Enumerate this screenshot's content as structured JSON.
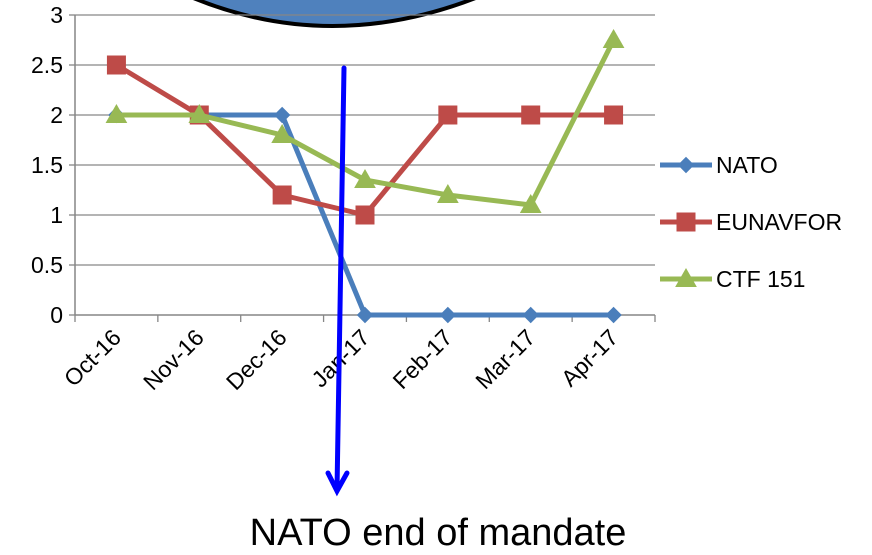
{
  "chart_data": {
    "type": "line",
    "categories": [
      "Oct-16",
      "Nov-16",
      "Dec-16",
      "Jan-17",
      "Feb-17",
      "Mar-17",
      "Apr-17"
    ],
    "ylim": [
      0,
      3
    ],
    "yticks": [
      "0",
      "0.5",
      "1",
      "1.5",
      "2",
      "2.5",
      "3"
    ],
    "grid": "horizontal",
    "legend": "right",
    "series": [
      {
        "name": "NATO",
        "marker": "diamond",
        "color": "#4A7EBB",
        "values": [
          2,
          2,
          2,
          0,
          0,
          0,
          0
        ]
      },
      {
        "name": "EUNAVFOR",
        "marker": "square",
        "color": "#BE4B48",
        "values": [
          2.5,
          2,
          1.2,
          1,
          2,
          2,
          2
        ]
      },
      {
        "name": "CTF 151",
        "marker": "triangle",
        "color": "#98B954",
        "values": [
          2,
          2,
          1.8,
          1.35,
          1.2,
          1.1,
          2.75
        ]
      }
    ],
    "annotation": {
      "text": "NATO end of mandate",
      "arrow_color": "#0000FF"
    },
    "banner_color": "#4F81BD"
  }
}
